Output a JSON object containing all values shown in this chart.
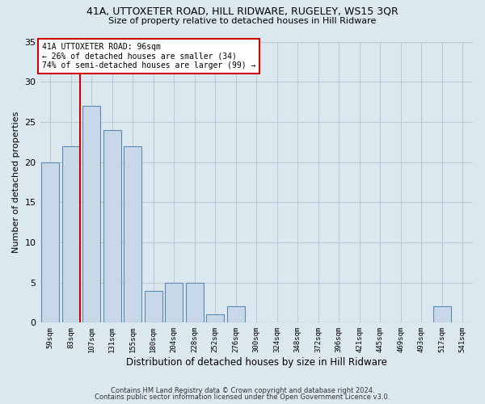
{
  "title_line1": "41A, UTTOXETER ROAD, HILL RIDWARE, RUGELEY, WS15 3QR",
  "title_line2": "Size of property relative to detached houses in Hill Ridware",
  "xlabel": "Distribution of detached houses by size in Hill Ridware",
  "ylabel": "Number of detached properties",
  "footer_line1": "Contains HM Land Registry data © Crown copyright and database right 2024.",
  "footer_line2": "Contains public sector information licensed under the Open Government Licence v3.0.",
  "bin_labels": [
    "59sqm",
    "83sqm",
    "107sqm",
    "131sqm",
    "155sqm",
    "180sqm",
    "204sqm",
    "228sqm",
    "252sqm",
    "276sqm",
    "300sqm",
    "324sqm",
    "348sqm",
    "372sqm",
    "396sqm",
    "421sqm",
    "445sqm",
    "469sqm",
    "493sqm",
    "517sqm",
    "541sqm"
  ],
  "bar_values": [
    20,
    22,
    27,
    24,
    22,
    4,
    5,
    5,
    1,
    2,
    0,
    0,
    0,
    0,
    0,
    0,
    0,
    0,
    0,
    2,
    0
  ],
  "bar_color": "#c8d8e8",
  "bar_edgecolor": "#5a8ab0",
  "vline_color": "#cc0000",
  "vline_pos": 1.425,
  "annotation_text": "41A UTTOXETER ROAD: 96sqm\n← 26% of detached houses are smaller (34)\n74% of semi-detached houses are larger (99) →",
  "annotation_box_edgecolor": "#cc0000",
  "annotation_box_facecolor": "#ffffff",
  "ylim": [
    0,
    35
  ],
  "yticks": [
    0,
    5,
    10,
    15,
    20,
    25,
    30,
    35
  ],
  "grid_color": "#c0c8d8",
  "background_color": "#dce8f0"
}
